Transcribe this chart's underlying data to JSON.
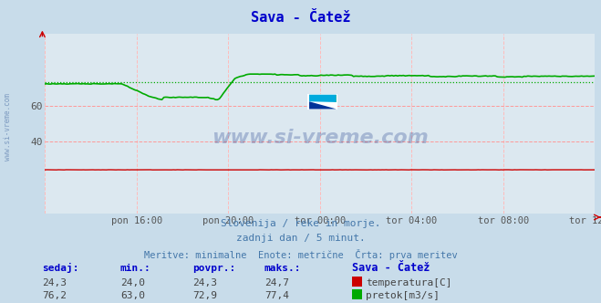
{
  "title": "Sava - Čatež",
  "bg_color": "#c8dcea",
  "plot_bg_color": "#dce8f0",
  "grid_color_h": "#ff9999",
  "grid_color_v": "#ffbbbb",
  "x_tick_labels": [
    "pon 16:00",
    "pon 20:00",
    "tor 00:00",
    "tor 04:00",
    "tor 08:00",
    "tor 12:00"
  ],
  "y_ticks": [
    40,
    60
  ],
  "ylim": [
    0,
    100
  ],
  "temp_color": "#cc0000",
  "flow_color": "#00aa00",
  "subtitle1": "Slovenija / reke in morje.",
  "subtitle2": "zadnji dan / 5 minut.",
  "subtitle3": "Meritve: minimalne  Enote: metrične  Črta: prva meritev",
  "table_headers": [
    "sedaj:",
    "min.:",
    "povpr.:",
    "maks.:",
    "Sava - Čatež"
  ],
  "temp_row": [
    "24,3",
    "24,0",
    "24,3",
    "24,7"
  ],
  "flow_row": [
    "76,2",
    "63,0",
    "72,9",
    "77,4"
  ],
  "temp_label": "temperatura[C]",
  "flow_label": "pretok[m3/s]",
  "n_points": 288,
  "temp_value": 24.3,
  "temp_min": 24.0,
  "temp_max": 24.7,
  "flow_min": 63.0,
  "flow_max": 77.4,
  "flow_avg": 72.9
}
